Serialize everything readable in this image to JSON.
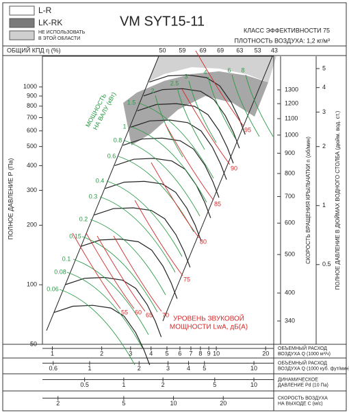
{
  "legend": [
    {
      "label": "L-R"
    },
    {
      "label": "LK-RK"
    },
    {
      "lines": [
        "НЕ ИСПОЛЬЗОВАТЬ",
        "В ЭТОЙ ОБЛАСТИ"
      ]
    }
  ],
  "chart_data": {
    "type": "nomogram",
    "title": "VM SYT15-11",
    "efficiency_class": "КЛАСС ЭФФЕКТИВНОСТИ 75",
    "air_density": "ПЛОТНОСТЬ ВОЗДУХА: 1,2 кг/м³",
    "efficiency": {
      "label": "ОБЩИЙ КПД η (%)",
      "x": [
        4.7,
        6.2,
        8.3,
        10.6,
        13.9,
        17.9,
        22.6
      ],
      "values": [
        50,
        59,
        69,
        69,
        63,
        53,
        43
      ]
    },
    "ylabel": "ПОЛНОЕ ДАВЛЕНИЕ Р (Па)",
    "log_y": true,
    "ylim": [
      50,
      1430
    ],
    "yticks": [
      50,
      100,
      200,
      300,
      400,
      500,
      600,
      700,
      800,
      900,
      1000
    ],
    "rpm_axis": {
      "label": "СКОРОСТЬ ВРАЩЕНИЯ КРЫЛЬЧАТКИ n (об/мин)",
      "lim": [
        297,
        1580
      ],
      "ticks": [
        340,
        400,
        500,
        600,
        700,
        800,
        900,
        1000,
        1100,
        1200,
        1300
      ]
    },
    "inch_axis": {
      "label": "ПОЛНОЕ ДАВЛЕНИЕ В ДЮЙМАХ ВОДНОГО СТОЛБА (дюйм. вод. ст.)",
      "lim": [
        0.196,
        5.78
      ],
      "ticks": [
        0.5,
        1,
        2,
        3,
        4,
        5
      ]
    },
    "x_scales": [
      {
        "label": [
          "ОБЪЕМНЫЙ РАСХОД",
          "ВОЗДУХА Q (1000 м³/ч)"
        ],
        "lim": [
          0.87,
          22.4
        ],
        "ticks": [
          1,
          2,
          3,
          4,
          5,
          6,
          7,
          8,
          9,
          10,
          20
        ]
      },
      {
        "label": [
          "ОБЪЕМНЫЙ РАСХОД",
          "ВОЗДУХА Q (1000 куб. фут/мин)"
        ],
        "lim": [
          0.516,
          13.2
        ],
        "ticks": [
          0.6,
          1,
          2,
          3,
          4,
          5,
          10
        ]
      },
      {
        "label": [
          "ДИНАМИЧЕСКОЕ",
          "ДАВЛЕНИЕ Pd (10 Па)"
        ],
        "lim": [
          0.237,
          14.2
        ],
        "ticks": [
          0.5,
          1,
          2,
          5,
          10
        ]
      },
      {
        "label": [
          "СКОРОСТЬ ВОЗДУХА",
          "НА ВЫХОДЕ С (м/с)"
        ],
        "lim": [
          1.61,
          40.4
        ],
        "ticks": [
          2,
          5,
          10,
          20
        ]
      }
    ],
    "power": {
      "label": [
        "МОЩНОСТЬ",
        "НА ВАЛУ (кВт)"
      ],
      "values": [
        0.06,
        0.08,
        0.1,
        0.15,
        0.2,
        0.3,
        0.4,
        0.6,
        0.8,
        1,
        1.5,
        2,
        2.5,
        3,
        4,
        6,
        8
      ],
      "color": "#2a9a45"
    },
    "sound": {
      "label": [
        "УРОВЕНЬ ЗВУКОВОЙ",
        "МОЩНОСТИ LwA, дБ(A)"
      ],
      "values": [
        55,
        60,
        65,
        70,
        75,
        80,
        85,
        90,
        95
      ],
      "color": "#d42a2a"
    }
  }
}
